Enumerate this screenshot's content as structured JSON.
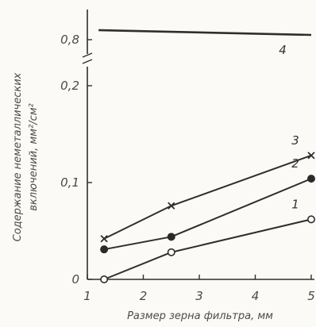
{
  "chart_data": {
    "type": "line",
    "xlabel": "Размер зерна фильтра, мм",
    "ylabel": [
      "Содержание неметаллических",
      "включений, мм²/см²"
    ],
    "xlim": [
      1,
      5
    ],
    "x_ticks": [
      1,
      2,
      3,
      4,
      5
    ],
    "x_tick_labels": [
      "1",
      "2",
      "3",
      "4",
      "5"
    ],
    "ylim_lower": [
      0,
      0.2
    ],
    "ylim_upper_tick": 0.8,
    "y_axis_break": true,
    "y_ticks": [
      0,
      0.1,
      0.2,
      0.8
    ],
    "y_tick_labels": [
      "0",
      "0,1",
      "0,2",
      "0,8"
    ],
    "grid": false,
    "legend": "none",
    "series": [
      {
        "label": "1",
        "marker": "open-circle",
        "x": [
          1.3,
          2.5,
          5.0
        ],
        "y": [
          0.0,
          0.028,
          0.062
        ]
      },
      {
        "label": "2",
        "marker": "filled-circle",
        "x": [
          1.3,
          2.5,
          5.0
        ],
        "y": [
          0.031,
          0.044,
          0.104
        ]
      },
      {
        "label": "3",
        "marker": "cross",
        "x": [
          1.3,
          2.5,
          5.0
        ],
        "y": [
          0.042,
          0.076,
          0.128
        ]
      },
      {
        "label": "4",
        "marker": "none",
        "x": [
          1.2,
          5.0
        ],
        "y": [
          0.82,
          0.81
        ]
      }
    ]
  }
}
